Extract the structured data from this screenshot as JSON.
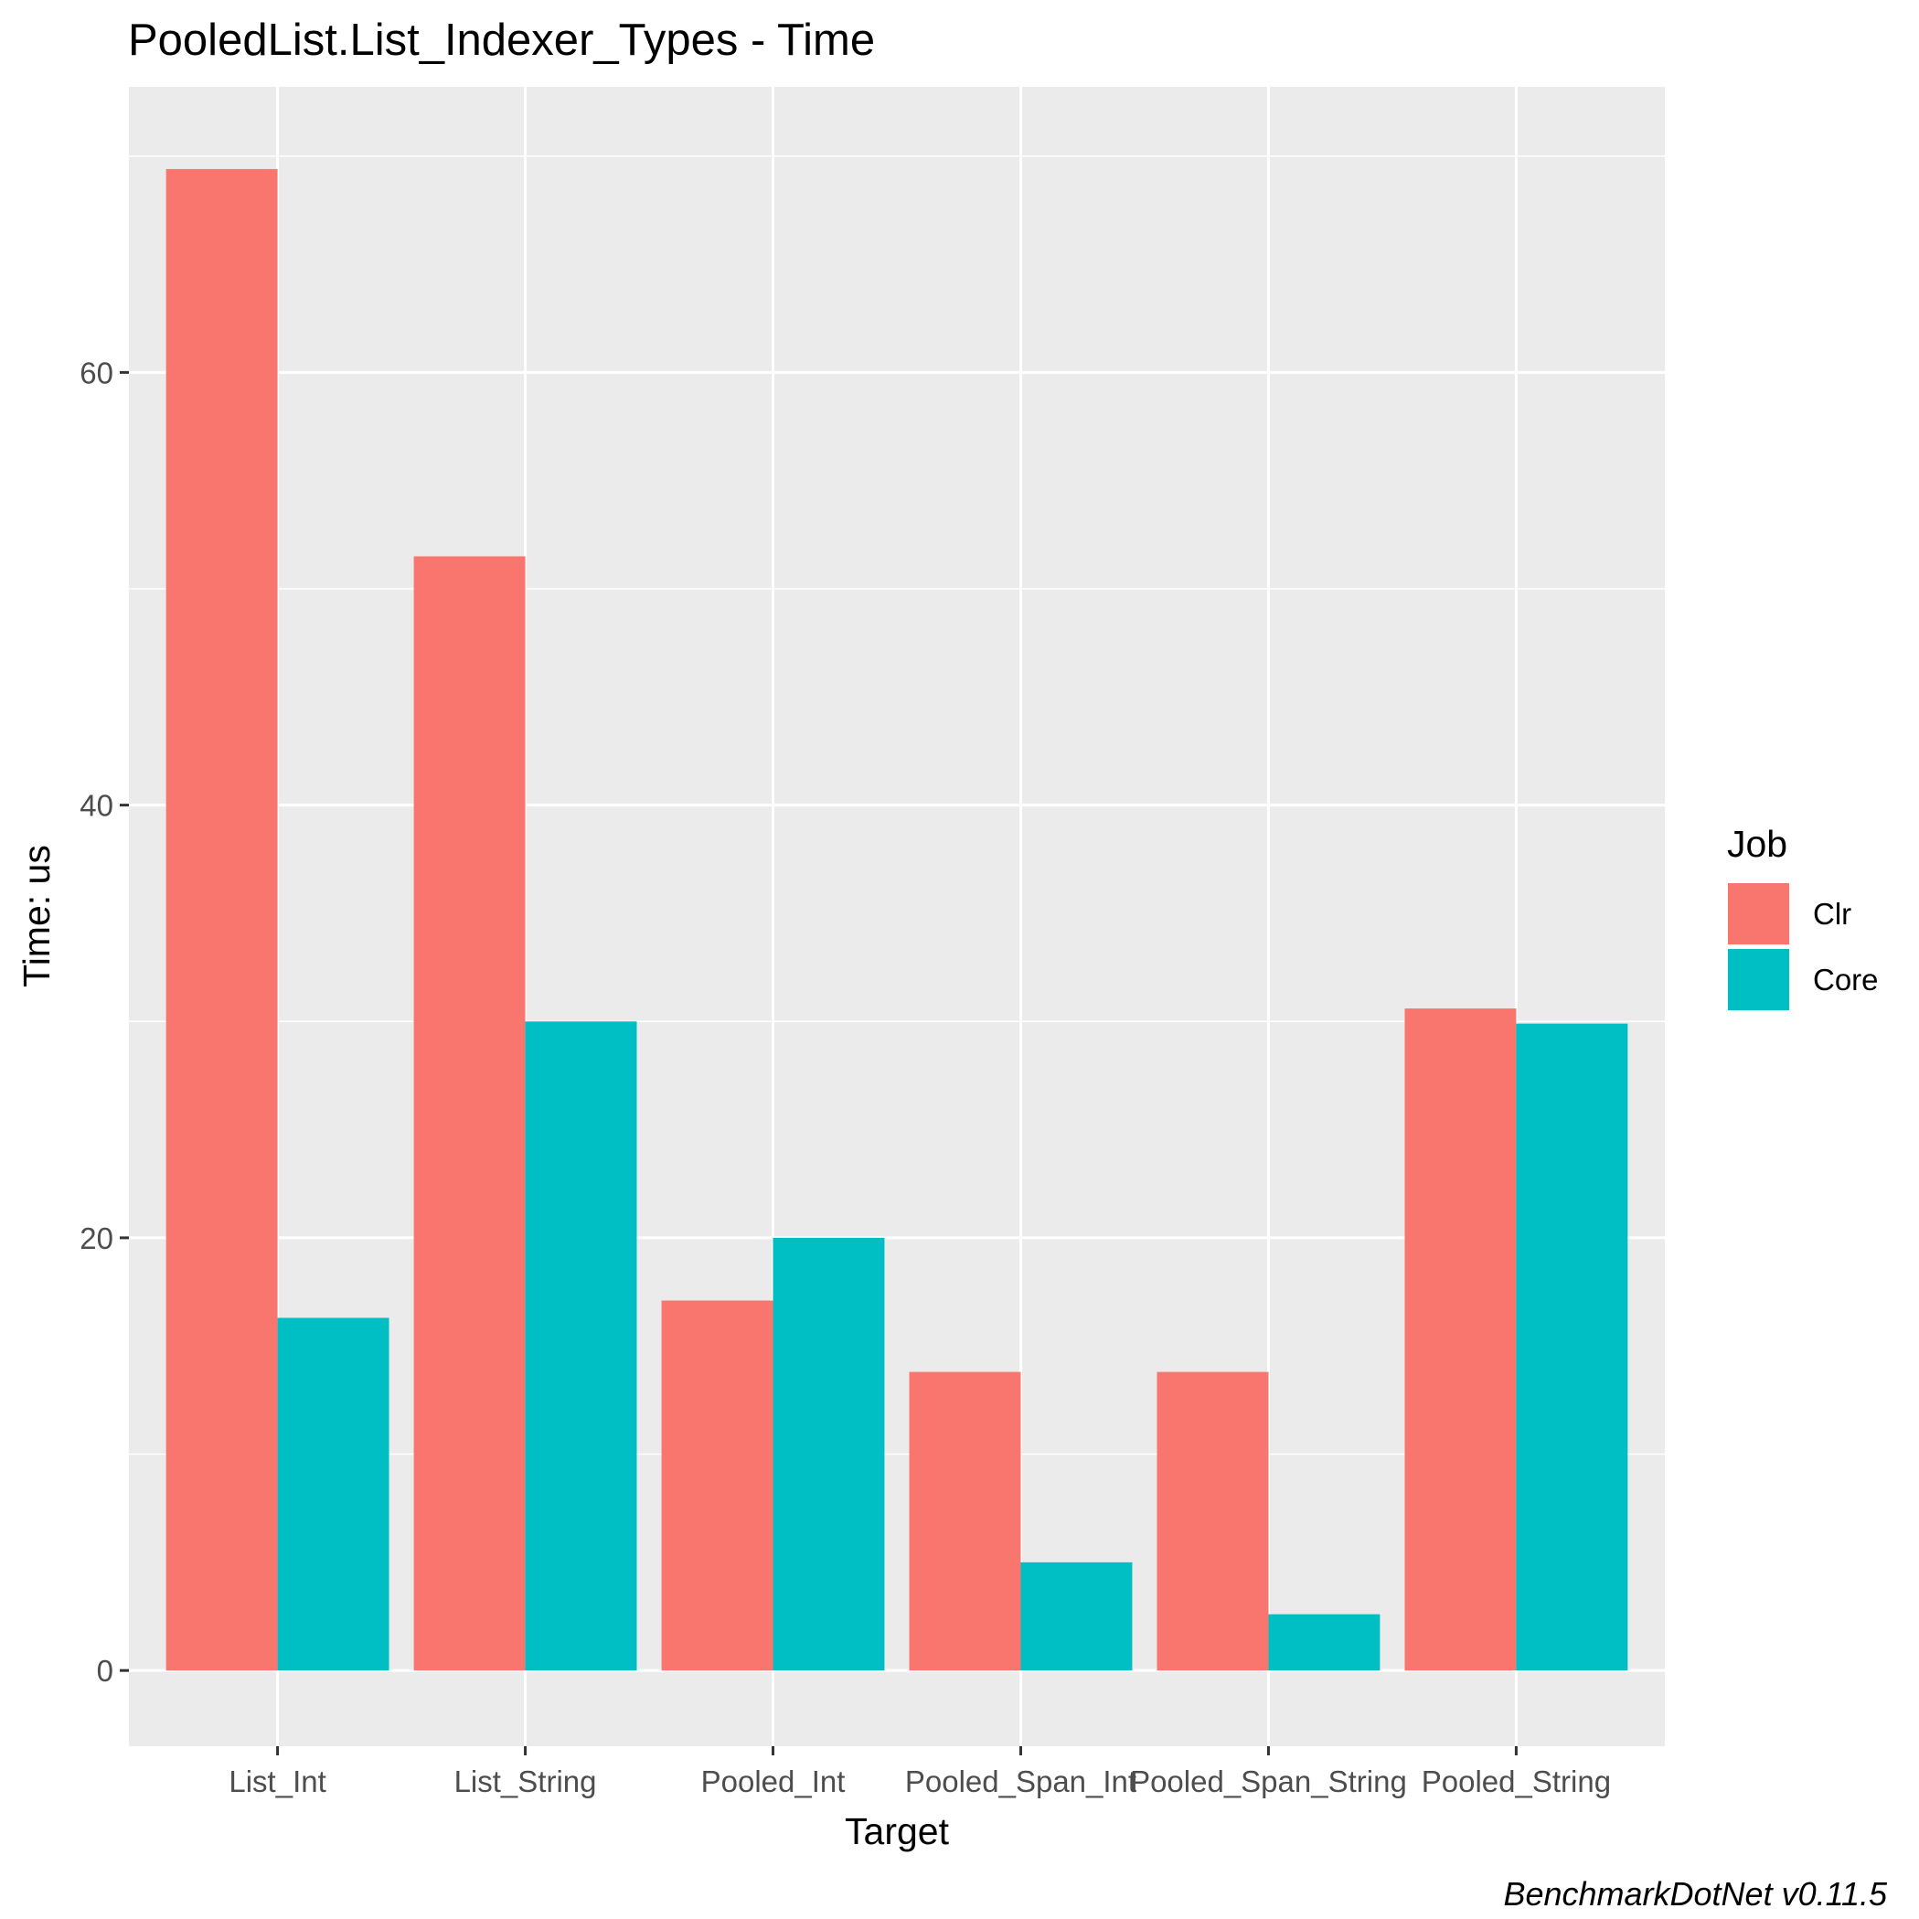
{
  "chart_data": {
    "type": "bar",
    "title": "PooledList.List_Indexer_Types - Time",
    "xlabel": "Target",
    "ylabel": "Time: us",
    "categories": [
      "List_Int",
      "List_String",
      "Pooled_Int",
      "Pooled_Span_Int",
      "Pooled_Span_String",
      "Pooled_String"
    ],
    "series": [
      {
        "name": "Clr",
        "color": "#F8766D",
        "values": [
          69.4,
          51.5,
          17.1,
          13.8,
          13.8,
          30.6
        ]
      },
      {
        "name": "Core",
        "color": "#00BFC4",
        "values": [
          16.3,
          30.0,
          20.0,
          5.0,
          2.6,
          29.9
        ]
      }
    ],
    "ylim": [
      -3.5,
      73.2
    ],
    "yticks": [
      0,
      20,
      40,
      60
    ],
    "grid": true,
    "legend": {
      "title": "Job",
      "position": "right"
    },
    "panel_background": "#EBEBEB",
    "caption": "BenchmarkDotNet v0.11.5"
  }
}
